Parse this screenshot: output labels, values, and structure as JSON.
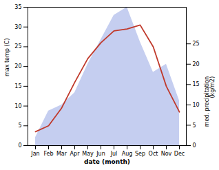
{
  "chart_data": {
    "type": "line",
    "categories": [
      "Jan",
      "Feb",
      "Mar",
      "Apr",
      "May",
      "Jun",
      "Jul",
      "Aug",
      "Sep",
      "Oct",
      "Nov",
      "Dec"
    ],
    "series": [
      {
        "type": "area",
        "axis": "y2",
        "color": "#c5cef0",
        "values": [
          2.0,
          8.5,
          10.0,
          13.0,
          20.0,
          26.0,
          32.0,
          34.0,
          25.5,
          18.0,
          20.0,
          11.0
        ]
      },
      {
        "type": "line",
        "color": "#c0392b",
        "values": [
          3.5,
          5.0,
          9.5,
          16.0,
          22.0,
          26.0,
          29.0,
          29.5,
          30.5,
          25.0,
          15.0,
          8.5
        ]
      }
    ],
    "xlabel": "date (month)",
    "ylabel": "max temp (C)",
    "y2label": "med. precipitation\n(kg/m2)",
    "ylim": [
      0,
      35
    ],
    "yticks": [
      0,
      5,
      10,
      15,
      20,
      25,
      30,
      35
    ],
    "y2lim": [
      0,
      34
    ],
    "y2ticks": [
      0,
      5,
      10,
      15,
      20,
      25
    ],
    "grid": false
  }
}
